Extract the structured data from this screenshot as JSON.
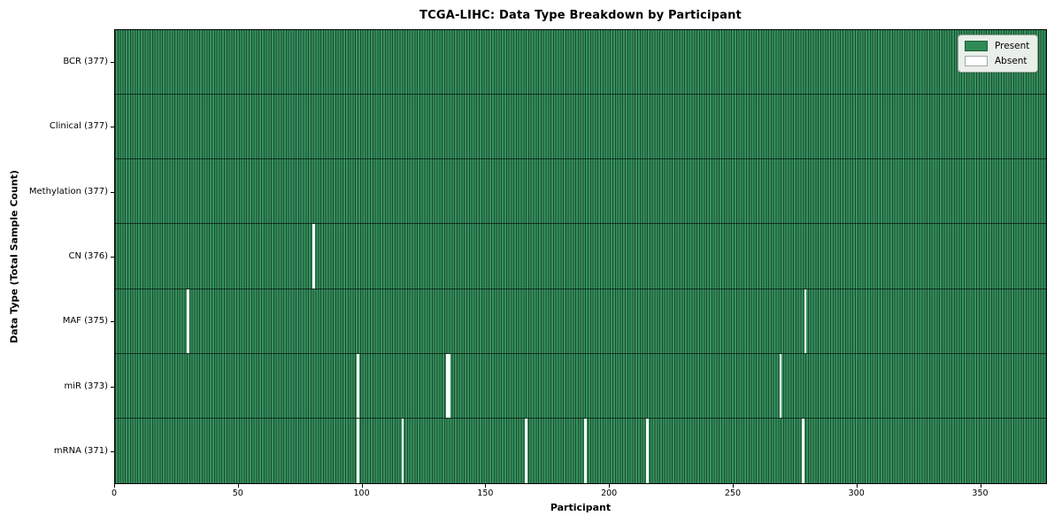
{
  "title": "TCGA-LIHC: Data Type Breakdown by Participant",
  "colors": {
    "present": "#2e8b57",
    "absent": "#ffffff",
    "cell_border": "#1a4a2f",
    "legend_background": "#e9efe9",
    "axes_border": "#000000"
  },
  "legend": {
    "items": [
      {
        "label": "Present",
        "color": "#2e8b57"
      },
      {
        "label": "Absent",
        "color": "#ffffff"
      }
    ]
  },
  "chart_data": {
    "type": "heatmap",
    "title": "TCGA-LIHC: Data Type Breakdown by Participant",
    "xlabel": "Participant",
    "ylabel": "Data Type (Total Sample Count)",
    "xlim": [
      0,
      377
    ],
    "n_participants": 377,
    "x_ticks": [
      0,
      50,
      100,
      150,
      200,
      250,
      300,
      350
    ],
    "grid": false,
    "legend_position": "upper right",
    "value_encoding": {
      "present": 1,
      "absent": 0
    },
    "rows": [
      {
        "label": "BCR (377)",
        "data_type": "BCR",
        "total": 377,
        "absent_indices": []
      },
      {
        "label": "Clinical (377)",
        "data_type": "Clinical",
        "total": 377,
        "absent_indices": []
      },
      {
        "label": "Methylation (377)",
        "data_type": "Methylation",
        "total": 377,
        "absent_indices": []
      },
      {
        "label": "CN (376)",
        "data_type": "CN",
        "total": 376,
        "absent_indices": [
          80
        ]
      },
      {
        "label": "MAF (375)",
        "data_type": "MAF",
        "total": 375,
        "absent_indices": [
          29,
          279
        ]
      },
      {
        "label": "miR (373)",
        "data_type": "miR",
        "total": 373,
        "absent_indices": [
          98,
          134,
          135,
          269
        ]
      },
      {
        "label": "mRNA (371)",
        "data_type": "mRNA",
        "total": 371,
        "absent_indices": [
          98,
          116,
          166,
          190,
          215,
          278
        ]
      }
    ]
  }
}
